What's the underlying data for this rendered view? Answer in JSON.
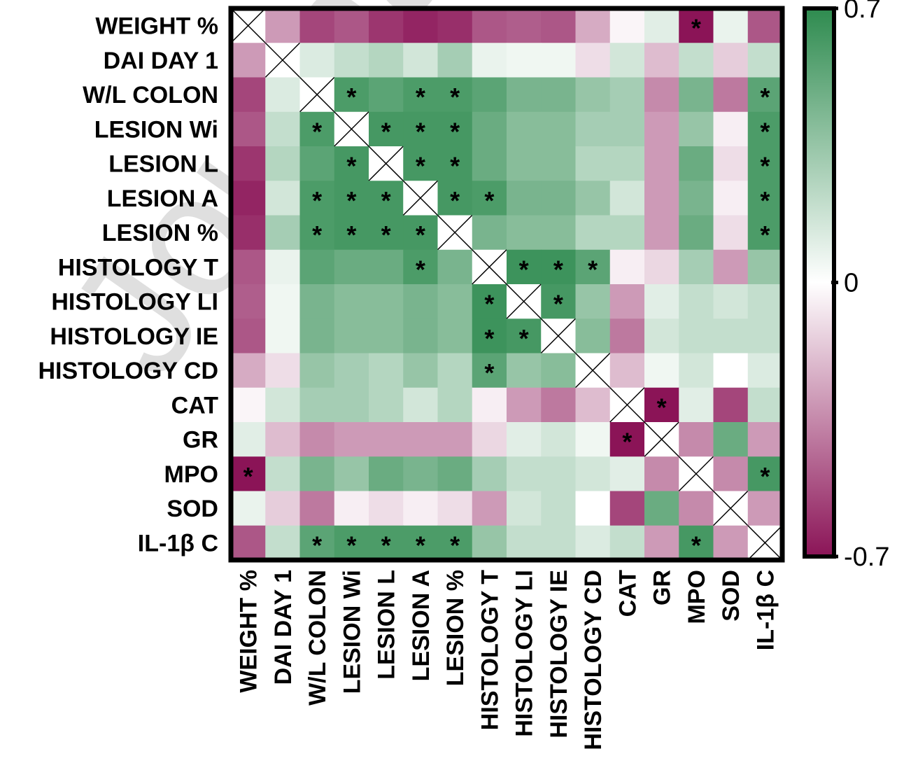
{
  "watermark": "Journal Pre-proof",
  "chart_data": {
    "type": "heatmap",
    "rows": [
      "WEIGHT %",
      "DAI DAY 1",
      "W/L COLON",
      "LESION Wi",
      "LESION L",
      "LESION A",
      "LESION %",
      "HISTOLOGY T",
      "HISTOLOGY LI",
      "HISTOLOGY IE",
      "HISTOLOGY CD",
      "CAT",
      "GR",
      "MPO",
      "SOD",
      "IL-1β C"
    ],
    "columns": [
      "WEIGHT %",
      "DAI DAY 1",
      "W/L COLON",
      "LESION Wi",
      "LESION L",
      "LESION A",
      "LESION %",
      "HISTOLOGY T",
      "HISTOLOGY LI",
      "HISTOLOGY IE",
      "HISTOLOGY CD",
      "CAT",
      "GR",
      "MPO",
      "SOD",
      "IL-1β C"
    ],
    "values": [
      [
        null,
        -0.3,
        -0.55,
        -0.5,
        -0.6,
        -0.65,
        -0.62,
        -0.5,
        -0.48,
        -0.5,
        -0.25,
        -0.03,
        0.1,
        -0.7,
        0.07,
        -0.5
      ],
      [
        -0.3,
        null,
        0.12,
        0.2,
        0.25,
        0.15,
        0.3,
        0.07,
        0.05,
        0.05,
        -0.1,
        0.15,
        -0.2,
        0.2,
        -0.15,
        0.2
      ],
      [
        -0.55,
        0.12,
        null,
        0.6,
        0.55,
        0.6,
        0.6,
        0.55,
        0.45,
        0.45,
        0.35,
        0.3,
        -0.35,
        0.45,
        -0.4,
        0.55
      ],
      [
        -0.5,
        0.2,
        0.6,
        null,
        0.62,
        0.62,
        0.62,
        0.5,
        0.4,
        0.4,
        0.3,
        0.3,
        -0.3,
        0.35,
        -0.05,
        0.6
      ],
      [
        -0.6,
        0.25,
        0.55,
        0.62,
        null,
        0.62,
        0.62,
        0.5,
        0.4,
        0.4,
        0.25,
        0.25,
        -0.3,
        0.5,
        -0.1,
        0.6
      ],
      [
        -0.65,
        0.15,
        0.6,
        0.62,
        0.62,
        null,
        0.62,
        0.6,
        0.45,
        0.45,
        0.35,
        0.15,
        -0.3,
        0.45,
        -0.05,
        0.6
      ],
      [
        -0.62,
        0.3,
        0.6,
        0.62,
        0.62,
        0.62,
        null,
        0.45,
        0.4,
        0.4,
        0.25,
        0.25,
        -0.3,
        0.5,
        -0.1,
        0.6
      ],
      [
        -0.5,
        0.07,
        0.55,
        0.5,
        0.5,
        0.6,
        0.45,
        null,
        0.65,
        0.65,
        0.55,
        -0.05,
        -0.12,
        0.3,
        -0.3,
        0.35
      ],
      [
        -0.48,
        0.05,
        0.45,
        0.4,
        0.4,
        0.45,
        0.4,
        0.65,
        null,
        0.62,
        0.35,
        -0.3,
        0.1,
        0.2,
        0.15,
        0.2
      ],
      [
        -0.5,
        0.05,
        0.45,
        0.4,
        0.4,
        0.45,
        0.4,
        0.65,
        0.62,
        null,
        0.4,
        -0.4,
        0.15,
        0.2,
        0.2,
        0.2
      ],
      [
        -0.25,
        -0.1,
        0.35,
        0.3,
        0.25,
        0.35,
        0.25,
        0.55,
        0.35,
        0.4,
        null,
        -0.2,
        0.05,
        0.15,
        0.0,
        0.12
      ],
      [
        -0.03,
        0.15,
        0.3,
        0.3,
        0.25,
        0.15,
        0.25,
        -0.05,
        -0.3,
        -0.4,
        -0.2,
        null,
        -0.7,
        0.1,
        -0.55,
        0.2
      ],
      [
        0.1,
        -0.2,
        -0.35,
        -0.3,
        -0.3,
        -0.3,
        -0.3,
        -0.12,
        0.1,
        0.15,
        0.05,
        -0.7,
        null,
        -0.35,
        0.5,
        -0.3
      ],
      [
        -0.7,
        0.2,
        0.45,
        0.35,
        0.5,
        0.45,
        0.5,
        0.3,
        0.2,
        0.2,
        0.15,
        0.1,
        -0.35,
        null,
        -0.35,
        0.62
      ],
      [
        0.07,
        -0.15,
        -0.4,
        -0.05,
        -0.1,
        -0.05,
        -0.1,
        -0.3,
        0.15,
        0.2,
        0.0,
        -0.55,
        0.5,
        -0.35,
        null,
        -0.3
      ],
      [
        -0.5,
        0.2,
        0.55,
        0.6,
        0.6,
        0.6,
        0.6,
        0.35,
        0.2,
        0.2,
        0.12,
        0.2,
        -0.3,
        0.62,
        -0.3,
        null
      ]
    ],
    "significant": [
      [
        0,
        13
      ],
      [
        2,
        3
      ],
      [
        2,
        5
      ],
      [
        2,
        6
      ],
      [
        2,
        15
      ],
      [
        3,
        2
      ],
      [
        3,
        4
      ],
      [
        3,
        5
      ],
      [
        3,
        6
      ],
      [
        3,
        15
      ],
      [
        4,
        3
      ],
      [
        4,
        5
      ],
      [
        4,
        6
      ],
      [
        4,
        15
      ],
      [
        5,
        2
      ],
      [
        5,
        3
      ],
      [
        5,
        4
      ],
      [
        5,
        6
      ],
      [
        5,
        7
      ],
      [
        5,
        15
      ],
      [
        6,
        2
      ],
      [
        6,
        3
      ],
      [
        6,
        4
      ],
      [
        6,
        5
      ],
      [
        6,
        15
      ],
      [
        7,
        5
      ],
      [
        7,
        8
      ],
      [
        7,
        9
      ],
      [
        7,
        10
      ],
      [
        8,
        7
      ],
      [
        8,
        9
      ],
      [
        9,
        7
      ],
      [
        9,
        8
      ],
      [
        10,
        7
      ],
      [
        11,
        12
      ],
      [
        12,
        11
      ],
      [
        13,
        0
      ],
      [
        13,
        15
      ],
      [
        15,
        2
      ],
      [
        15,
        3
      ],
      [
        15,
        4
      ],
      [
        15,
        5
      ],
      [
        15,
        6
      ],
      [
        15,
        13
      ]
    ],
    "significance_marker": "*",
    "colorscale": {
      "min": -0.7,
      "mid": 0,
      "max": 0.7,
      "colors": {
        "neg": "#8b1457",
        "mid": "#ffffff",
        "pos": "#2e8b4f"
      },
      "tick_labels": [
        "0.7",
        "0",
        "-0.7"
      ]
    },
    "grid": false,
    "legend_placement": "right"
  }
}
